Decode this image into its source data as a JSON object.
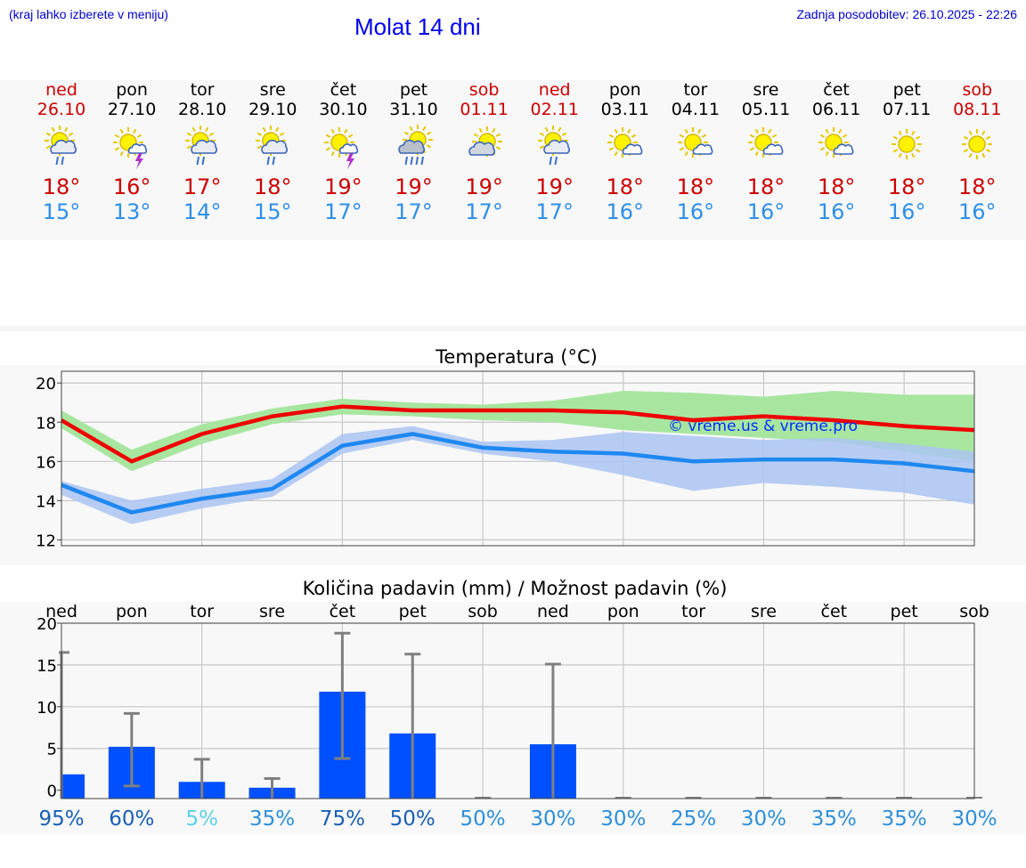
{
  "header": {
    "menu_hint": "(kraj lahko izberete v meniju)",
    "title": "Molat 14 dni",
    "updated": "Zadnja posodobitev: 26.10.2025 - 22:26"
  },
  "days": [
    {
      "name": "ned",
      "date": "26.10",
      "weekend": true,
      "icon": "sun-cloud-rain-icon",
      "tmax": "18°",
      "tmin": "15°"
    },
    {
      "name": "pon",
      "date": "27.10",
      "weekend": false,
      "icon": "sun-thunder-icon",
      "tmax": "16°",
      "tmin": "13°"
    },
    {
      "name": "tor",
      "date": "28.10",
      "weekend": false,
      "icon": "sun-cloud-rain-icon",
      "tmax": "17°",
      "tmin": "14°"
    },
    {
      "name": "sre",
      "date": "29.10",
      "weekend": false,
      "icon": "sun-cloud-rain-icon",
      "tmax": "18°",
      "tmin": "15°"
    },
    {
      "name": "čet",
      "date": "30.10",
      "weekend": false,
      "icon": "sun-thunder-icon",
      "tmax": "19°",
      "tmin": "17°"
    },
    {
      "name": "pet",
      "date": "31.10",
      "weekend": false,
      "icon": "sun-cloud-heavy-rain-icon",
      "tmax": "19°",
      "tmin": "17°"
    },
    {
      "name": "sob",
      "date": "01.11",
      "weekend": true,
      "icon": "sun-cloud-icon",
      "tmax": "19°",
      "tmin": "17°"
    },
    {
      "name": "ned",
      "date": "02.11",
      "weekend": true,
      "icon": "sun-cloud-rain-icon",
      "tmax": "19°",
      "tmin": "17°"
    },
    {
      "name": "pon",
      "date": "03.11",
      "weekend": false,
      "icon": "sun-small-cloud-icon",
      "tmax": "18°",
      "tmin": "16°"
    },
    {
      "name": "tor",
      "date": "04.11",
      "weekend": false,
      "icon": "sun-small-cloud-icon",
      "tmax": "18°",
      "tmin": "16°"
    },
    {
      "name": "sre",
      "date": "05.11",
      "weekend": false,
      "icon": "sun-small-cloud-icon",
      "tmax": "18°",
      "tmin": "16°"
    },
    {
      "name": "čet",
      "date": "06.11",
      "weekend": false,
      "icon": "sun-small-cloud-icon",
      "tmax": "18°",
      "tmin": "16°"
    },
    {
      "name": "pet",
      "date": "07.11",
      "weekend": false,
      "icon": "sun-icon",
      "tmax": "18°",
      "tmin": "16°"
    },
    {
      "name": "sob",
      "date": "08.11",
      "weekend": true,
      "icon": "sun-icon",
      "tmax": "18°",
      "tmin": "16°"
    }
  ],
  "colors": {
    "max_line": "#ee0000",
    "max_band": "#a8e6a0",
    "min_line": "#1e88f0",
    "min_band": "#aac4f2",
    "precip_bar": "#0050ff",
    "error_bar": "#808080"
  },
  "chart_data": [
    {
      "type": "line",
      "title": "Temperatura (°C)",
      "watermark": "© vreme.us & vreme.pro",
      "ylim": [
        11.7,
        20.6
      ],
      "yticks": [
        "20",
        "18",
        "16",
        "14",
        "12"
      ],
      "grid": true,
      "x": [
        0,
        1,
        2,
        3,
        4,
        5,
        6,
        7,
        8,
        9,
        10,
        11,
        12,
        13
      ],
      "series": [
        {
          "role": "max",
          "values": [
            18.1,
            16.0,
            17.4,
            18.3,
            18.8,
            18.6,
            18.6,
            18.6,
            18.5,
            18.1,
            18.3,
            18.1,
            17.8,
            17.6
          ]
        },
        {
          "role": "min",
          "values": [
            14.8,
            13.4,
            14.1,
            14.6,
            16.8,
            17.4,
            16.7,
            16.5,
            16.4,
            16.0,
            16.1,
            16.1,
            15.9,
            15.5
          ]
        }
      ],
      "bands": [
        {
          "role": "max",
          "lower": [
            17.7,
            15.5,
            16.9,
            17.9,
            18.4,
            18.3,
            18.1,
            18.0,
            17.6,
            17.4,
            17.2,
            17.0,
            16.5,
            16.0
          ],
          "upper": [
            18.6,
            16.6,
            17.9,
            18.7,
            19.2,
            19.0,
            18.9,
            19.1,
            19.6,
            19.5,
            19.3,
            19.6,
            19.4,
            19.4
          ]
        },
        {
          "role": "min",
          "lower": [
            14.3,
            12.8,
            13.6,
            14.2,
            16.4,
            17.1,
            16.4,
            16.0,
            15.3,
            14.5,
            14.9,
            14.7,
            14.4,
            13.8
          ],
          "upper": [
            15.0,
            14.0,
            14.6,
            15.1,
            17.4,
            17.8,
            17.0,
            17.1,
            17.5,
            17.3,
            17.1,
            17.2,
            16.9,
            16.5
          ]
        }
      ]
    },
    {
      "type": "bar",
      "title": "Količina padavin (mm) / Možnost padavin (%)",
      "categories": [
        "ned",
        "pon",
        "tor",
        "sre",
        "čet",
        "pet",
        "sob",
        "ned",
        "pon",
        "tor",
        "sre",
        "čet",
        "pet",
        "sob"
      ],
      "ylim": [
        -1,
        20
      ],
      "yticks": [
        "20",
        "15",
        "10",
        "5",
        "0"
      ],
      "grid": true,
      "values": [
        1.9,
        5.2,
        1.0,
        0.3,
        11.8,
        6.8,
        0,
        5.5,
        0,
        0,
        0,
        0,
        0,
        0
      ],
      "error_low": [
        0,
        0.5,
        0,
        0,
        3.8,
        0,
        0,
        0,
        0,
        0,
        0,
        0,
        0,
        0
      ],
      "error_high": [
        16.5,
        9.2,
        3.7,
        1.4,
        18.8,
        16.3,
        0,
        15.1,
        0,
        0,
        0,
        0,
        0,
        0
      ],
      "probability": [
        "95%",
        "60%",
        "5%",
        "35%",
        "75%",
        "50%",
        "50%",
        "30%",
        "30%",
        "25%",
        "30%",
        "35%",
        "35%",
        "30%"
      ],
      "probability_colors": [
        "#1a5fb4",
        "#1a5fb4",
        "#5ad0e8",
        "#2e8fd8",
        "#1a5fb4",
        "#1a5fb4",
        "#2e8fd8",
        "#2e8fd8",
        "#2e8fd8",
        "#2e8fd8",
        "#2e8fd8",
        "#2e8fd8",
        "#2e8fd8",
        "#2e8fd8"
      ]
    }
  ]
}
